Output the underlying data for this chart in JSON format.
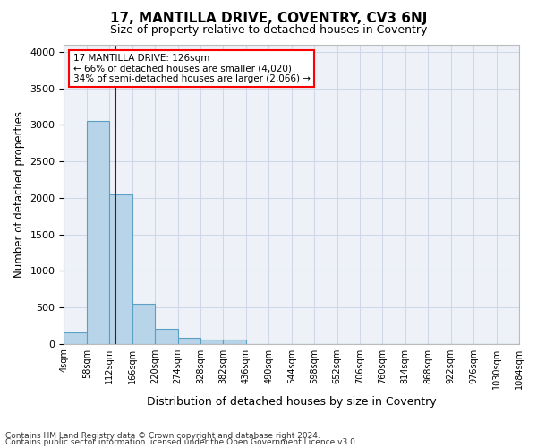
{
  "title1": "17, MANTILLA DRIVE, COVENTRY, CV3 6NJ",
  "title2": "Size of property relative to detached houses in Coventry",
  "xlabel": "Distribution of detached houses by size in Coventry",
  "ylabel": "Number of detached properties",
  "bin_labels": [
    "4sqm",
    "58sqm",
    "112sqm",
    "166sqm",
    "220sqm",
    "274sqm",
    "328sqm",
    "382sqm",
    "436sqm",
    "490sqm",
    "544sqm",
    "598sqm",
    "652sqm",
    "706sqm",
    "760sqm",
    "814sqm",
    "868sqm",
    "922sqm",
    "976sqm",
    "1030sqm",
    "1084sqm"
  ],
  "bar_values": [
    150,
    3050,
    2050,
    550,
    200,
    75,
    55,
    50,
    0,
    0,
    0,
    0,
    0,
    0,
    0,
    0,
    0,
    0,
    0,
    0
  ],
  "bar_color": "#b8d4e8",
  "bar_edge_color": "#5a9fc4",
  "red_line_x": 2.27,
  "annotation_text": "17 MANTILLA DRIVE: 126sqm\n← 66% of detached houses are smaller (4,020)\n34% of semi-detached houses are larger (2,066) →",
  "annotation_box_color": "white",
  "annotation_box_edge": "red",
  "ylim": [
    0,
    4100
  ],
  "yticks": [
    0,
    500,
    1000,
    1500,
    2000,
    2500,
    3000,
    3500,
    4000
  ],
  "grid_color": "#d0d8e8",
  "background_color": "#eef2f8",
  "footer1": "Contains HM Land Registry data © Crown copyright and database right 2024.",
  "footer2": "Contains public sector information licensed under the Open Government Licence v3.0."
}
